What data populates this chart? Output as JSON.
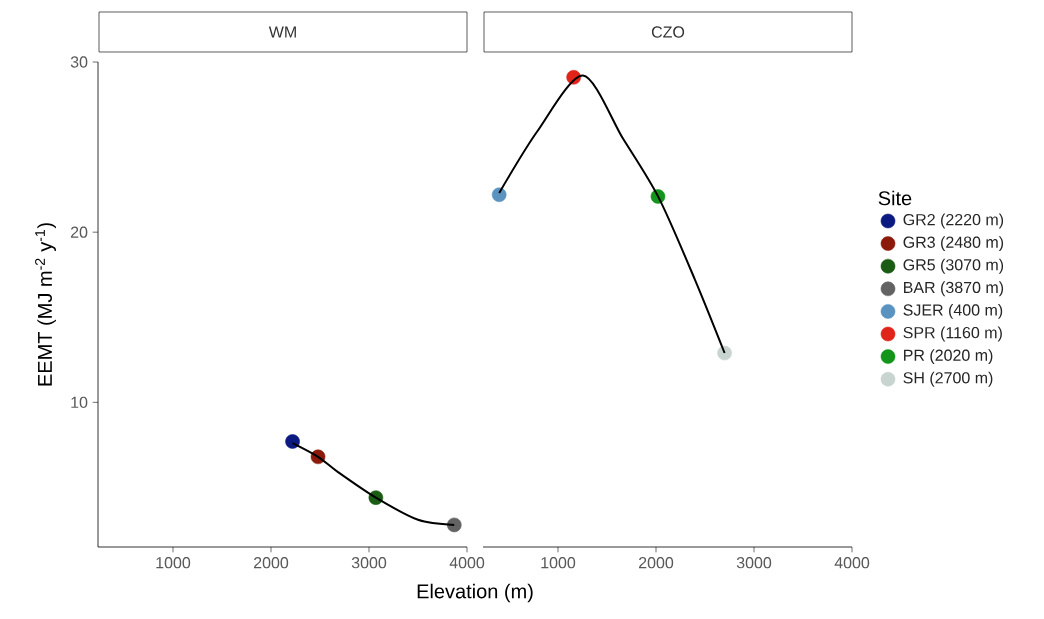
{
  "chart_data": [
    {
      "type": "scatter",
      "title": "WM",
      "xlabel": "Elevation  (m)",
      "ylabel": "EEMT  (MJ m$^{-2}$ y$^{-1}$)",
      "xlim": [
        235,
        4000
      ],
      "ylim": [
        1.5,
        30
      ],
      "xticks": [
        1000,
        2000,
        3000,
        4000
      ],
      "yticks": [
        10,
        20,
        30
      ],
      "legend": "right",
      "series": [
        {
          "name": "GR2 (2220 m)",
          "color": "#0a1a80",
          "marker": "circle",
          "x": [
            2220
          ],
          "values": [
            7.7
          ]
        },
        {
          "name": "GR3 (2480 m)",
          "color": "#8b1a0a",
          "marker": "circle",
          "x": [
            2480
          ],
          "values": [
            6.8
          ]
        },
        {
          "name": "GR5 (3070 m)",
          "color": "#1a5c14",
          "marker": "circle",
          "x": [
            3070
          ],
          "values": [
            4.4
          ]
        },
        {
          "name": "BAR (3870 m)",
          "color": "#636363",
          "marker": "circle",
          "x": [
            3870
          ],
          "values": [
            2.8
          ]
        },
        {
          "type": "line",
          "color": "#000000",
          "marker": "none",
          "x": [
            2220,
            2480,
            2684,
            3070,
            3500,
            3870
          ],
          "values": [
            7.6,
            6.8,
            5.9,
            4.4,
            3.1,
            2.8
          ]
        }
      ]
    },
    {
      "type": "scatter",
      "title": "CZO",
      "legend_title": "Site",
      "xlim": [
        235,
        4000
      ],
      "ylim": [
        1.5,
        30
      ],
      "xticks": [
        1000,
        2000,
        3000,
        4000
      ],
      "tick_labels": "x",
      "legend": "right",
      "series": [
        {
          "name": "SJER (400 m)",
          "color": "#5b93c0",
          "marker": "circle",
          "x": [
            400
          ],
          "values": [
            22.2
          ]
        },
        {
          "name": "SPR (1160 m)",
          "color": "#e0241a",
          "marker": "circle",
          "x": [
            1160
          ],
          "values": [
            29.1
          ]
        },
        {
          "name": "PR (2020 m)",
          "color": "#12951a",
          "marker": "circle",
          "x": [
            2020
          ],
          "values": [
            22.1
          ]
        },
        {
          "name": "SH (2700 m)",
          "color": "#c8d4d0",
          "marker": "circle",
          "x": [
            2700
          ],
          "values": [
            12.9
          ]
        },
        {
          "type": "line",
          "color": "#000000",
          "marker": "none",
          "x": [
            400,
            786,
            1255,
            1663,
            2030,
            2398,
            2700
          ],
          "values": [
            22.3,
            25.9,
            29.2,
            25.5,
            22.0,
            17.2,
            12.9
          ]
        }
      ]
    }
  ]
}
